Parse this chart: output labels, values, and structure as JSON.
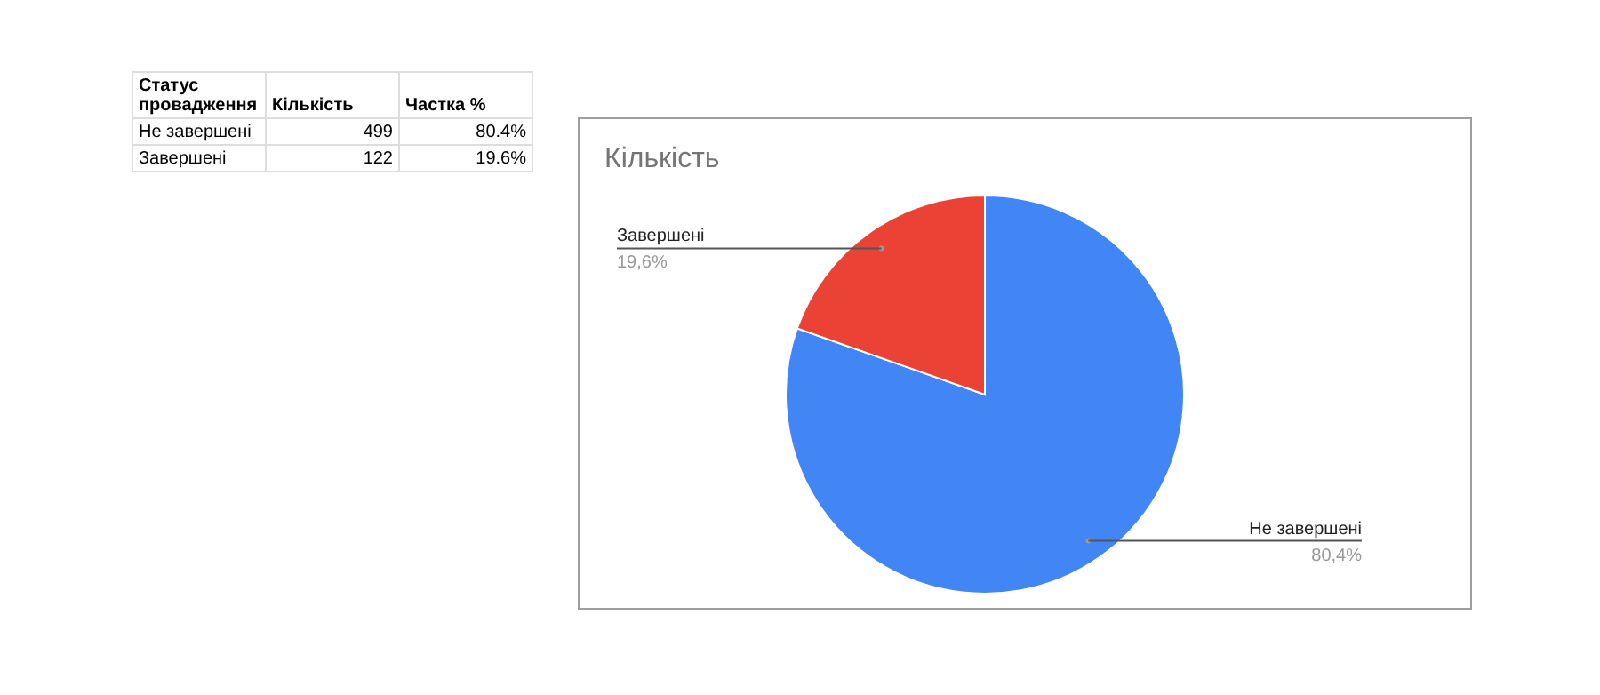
{
  "chart_data": {
    "type": "pie",
    "title": "Кількість",
    "categories": [
      "Не завершені",
      "Завершені"
    ],
    "values": [
      80.4,
      19.6
    ],
    "colors": [
      "#4285f4",
      "#ea4335"
    ],
    "value_labels": [
      "80,4%",
      "19,6%"
    ],
    "annotations": [
      "Статус провадження",
      "Кількість",
      "Частка %",
      "499",
      "80.4%",
      "122",
      "19.6%"
    ]
  }
}
